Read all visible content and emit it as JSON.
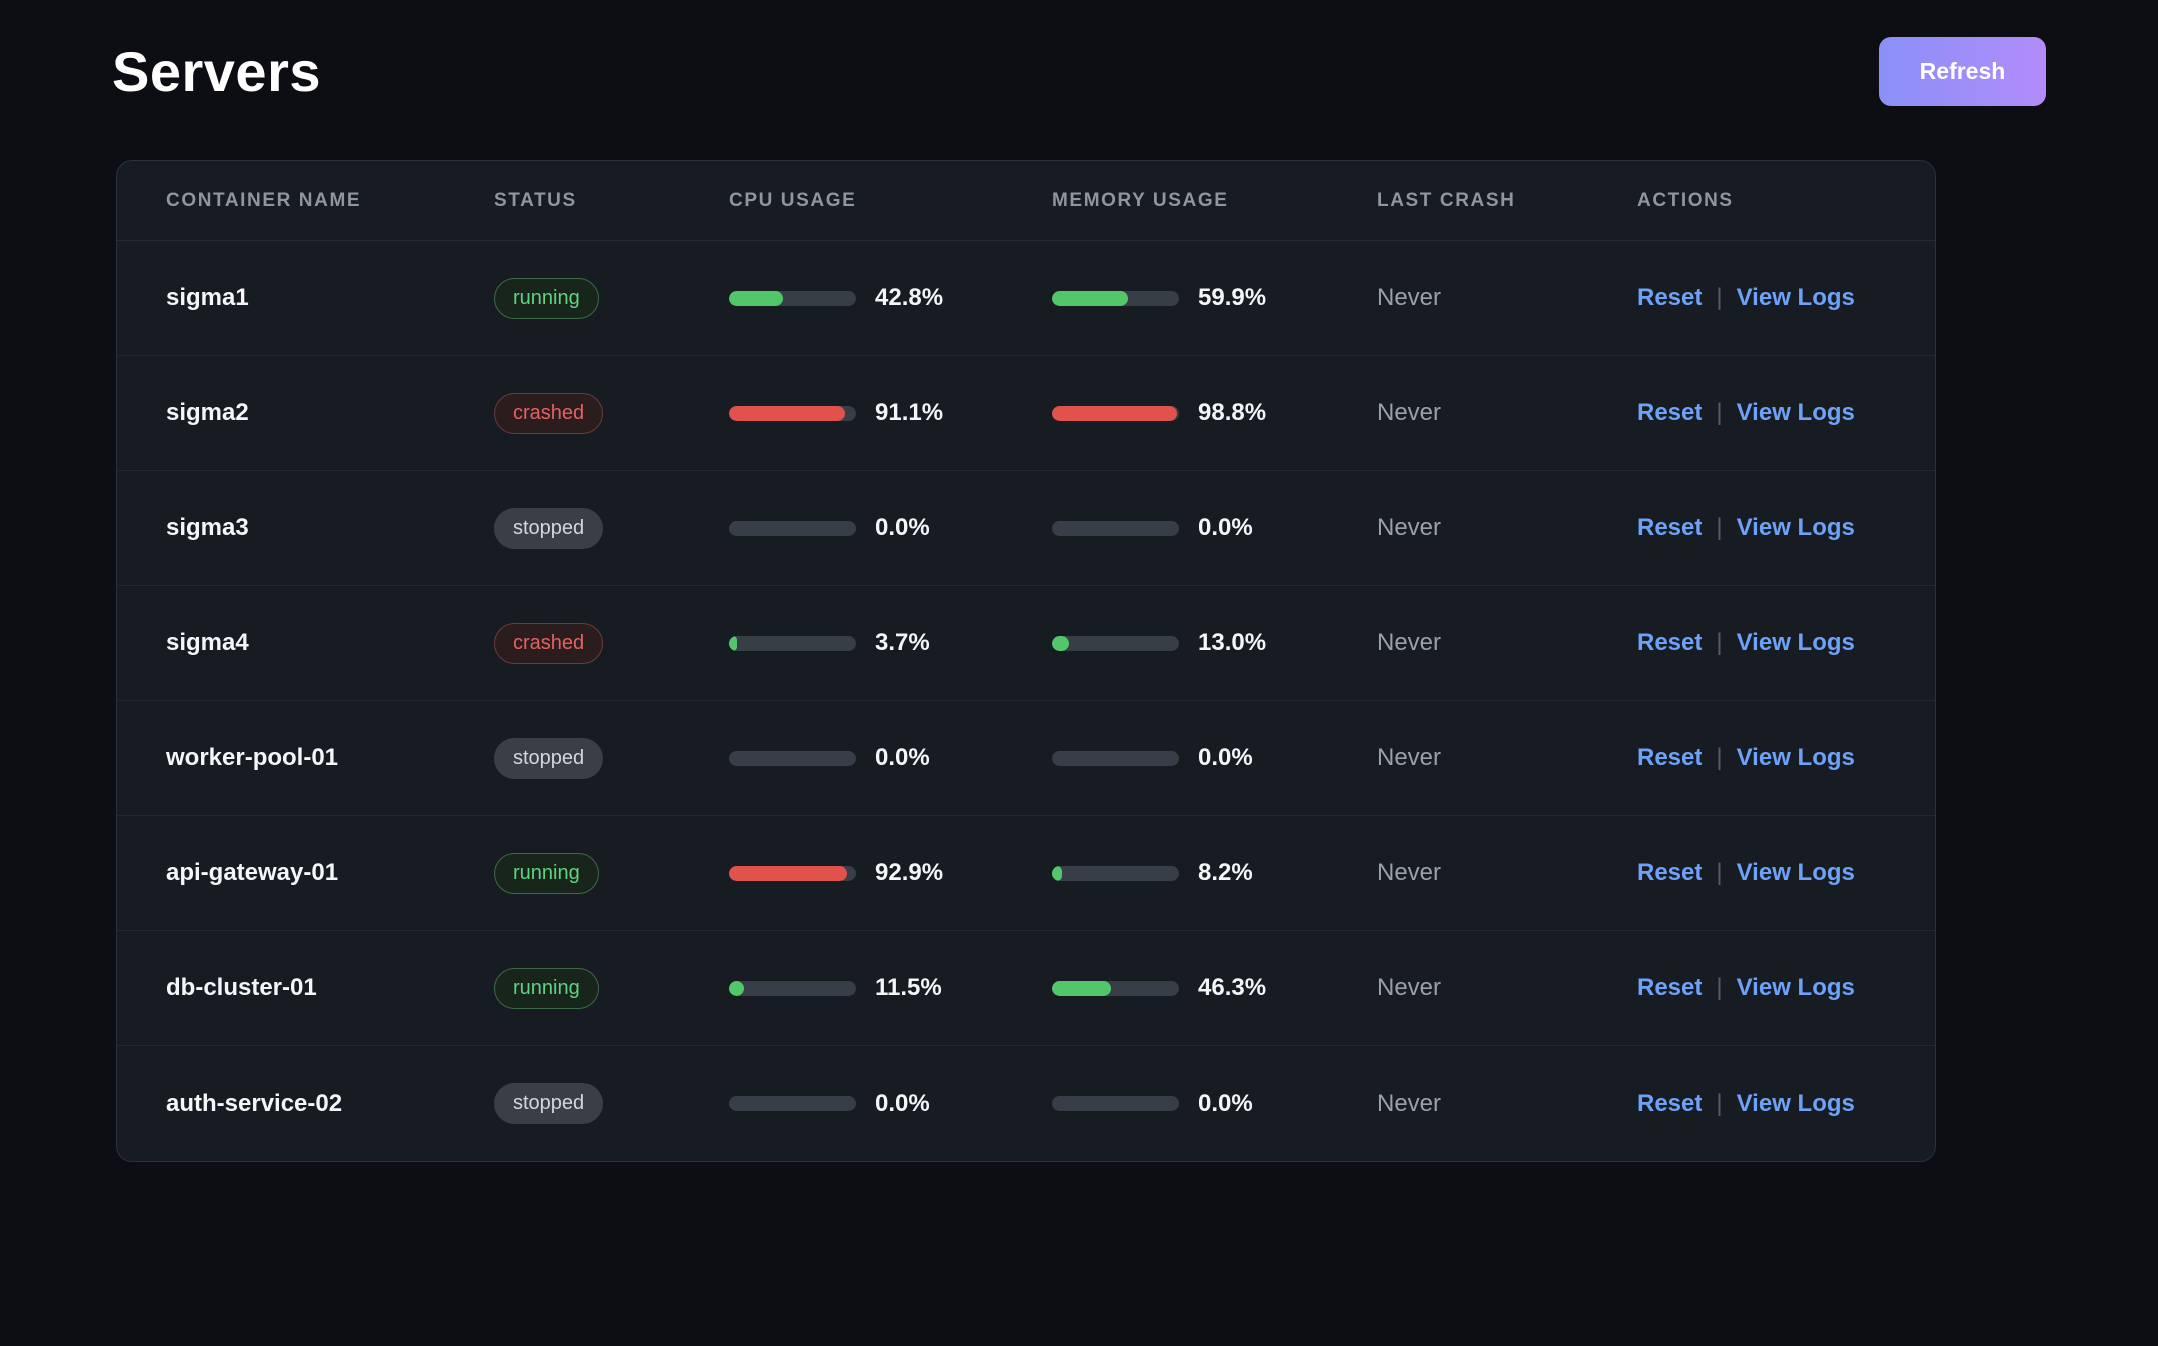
{
  "page": {
    "title": "Servers"
  },
  "toolbar": {
    "refresh_label": "Refresh"
  },
  "colors": {
    "green": "#52c76a",
    "red": "#e0524b",
    "link_blue": "#6ea2f8",
    "button_gradient_start": "#8a90f7",
    "button_gradient_end": "#b28cfa"
  },
  "table": {
    "columns": [
      "CONTAINER NAME",
      "STATUS",
      "CPU USAGE",
      "MEMORY USAGE",
      "LAST CRASH",
      "ACTIONS"
    ],
    "actions": {
      "reset_label": "Reset",
      "separator": "|",
      "view_logs_label": "View Logs"
    },
    "rows": [
      {
        "name": "sigma1",
        "status": "running",
        "cpu": {
          "label": "42.8%",
          "pct": 42.8,
          "color": "green"
        },
        "memory": {
          "label": "59.9%",
          "pct": 59.9,
          "color": "green"
        },
        "last_crash": "Never"
      },
      {
        "name": "sigma2",
        "status": "crashed",
        "cpu": {
          "label": "91.1%",
          "pct": 91.1,
          "color": "red"
        },
        "memory": {
          "label": "98.8%",
          "pct": 98.8,
          "color": "red"
        },
        "last_crash": "Never"
      },
      {
        "name": "sigma3",
        "status": "stopped",
        "cpu": {
          "label": "0.0%",
          "pct": 0,
          "color": "green"
        },
        "memory": {
          "label": "0.0%",
          "pct": 0,
          "color": "green"
        },
        "last_crash": "Never"
      },
      {
        "name": "sigma4",
        "status": "crashed",
        "cpu": {
          "label": "3.7%",
          "pct": 3.7,
          "color": "green"
        },
        "memory": {
          "label": "13.0%",
          "pct": 13.0,
          "color": "green"
        },
        "last_crash": "Never"
      },
      {
        "name": "worker-pool-01",
        "status": "stopped",
        "cpu": {
          "label": "0.0%",
          "pct": 0,
          "color": "green"
        },
        "memory": {
          "label": "0.0%",
          "pct": 0,
          "color": "green"
        },
        "last_crash": "Never"
      },
      {
        "name": "api-gateway-01",
        "status": "running",
        "cpu": {
          "label": "92.9%",
          "pct": 92.9,
          "color": "red"
        },
        "memory": {
          "label": "8.2%",
          "pct": 8.2,
          "color": "green"
        },
        "last_crash": "Never"
      },
      {
        "name": "db-cluster-01",
        "status": "running",
        "cpu": {
          "label": "11.5%",
          "pct": 11.5,
          "color": "green"
        },
        "memory": {
          "label": "46.3%",
          "pct": 46.3,
          "color": "green"
        },
        "last_crash": "Never"
      },
      {
        "name": "auth-service-02",
        "status": "stopped",
        "cpu": {
          "label": "0.0%",
          "pct": 0,
          "color": "green"
        },
        "memory": {
          "label": "0.0%",
          "pct": 0,
          "color": "green"
        },
        "last_crash": "Never"
      }
    ]
  }
}
